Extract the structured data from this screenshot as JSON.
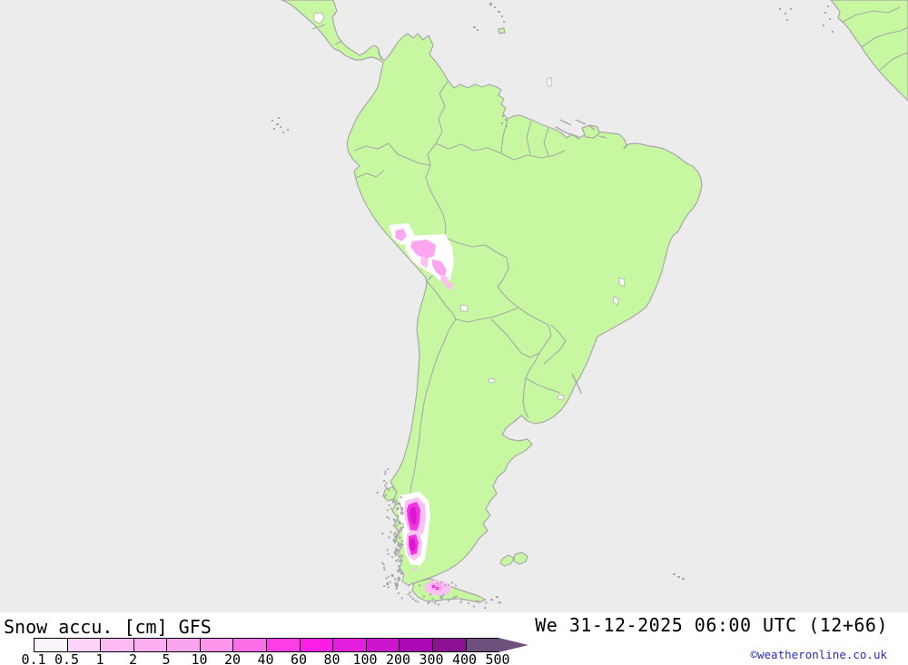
{
  "footer": {
    "title": "Snow accu. [cm] GFS",
    "valid_time": "We 31-12-2025 06:00 UTC (12+66)",
    "copyright": "©weatheronline.co.uk"
  },
  "chart_data": {
    "type": "heatmap",
    "title": "Snow accu. [cm] GFS",
    "variable": "Snow accumulation",
    "unit": "cm",
    "model": "GFS",
    "valid_time": "We 31-12-2025 06:00 UTC (12+66)",
    "region": "South America",
    "legend": {
      "orientation": "horizontal",
      "tick_labels": [
        "0.1",
        "0.5",
        "1",
        "2",
        "5",
        "10",
        "20",
        "40",
        "60",
        "80",
        "100",
        "200",
        "300",
        "400",
        "500"
      ],
      "segment_colors": [
        "#fcf4fb",
        "#fdd3f8",
        "#fcbbf3",
        "#fbaef0",
        "#fba5ee",
        "#fc95eb",
        "#fd6fe8",
        "#fe3ee5",
        "#fb1fe6",
        "#e51edd",
        "#cb15cd",
        "#a908b2",
        "#8b1094",
        "#6f4f7b"
      ],
      "arrow_color": "#6f4f7b"
    },
    "data_regions": [
      {
        "area": "Peruvian Andes (Peru/Bolivia)",
        "value_range_cm": "0.1-10"
      },
      {
        "area": "Patagonian Andes (southern Chile/Argentina)",
        "value_range_cm": "10-100"
      },
      {
        "area": "Tierra del Fuego",
        "value_range_cm": "0.1-40"
      }
    ],
    "colors": {
      "ocean": "#ececec",
      "land": "#c8f7a1",
      "border": "#a8a8a8",
      "lake": "#ffffff",
      "snow_halo": "#ffffff",
      "snow_light": "#f9c2f2",
      "snow_mid": "#fba6ee",
      "snow_strong": "#f532e0",
      "snow_deep": "#da17d4",
      "text": "#000000",
      "copyright": "#2b2bbe"
    }
  }
}
